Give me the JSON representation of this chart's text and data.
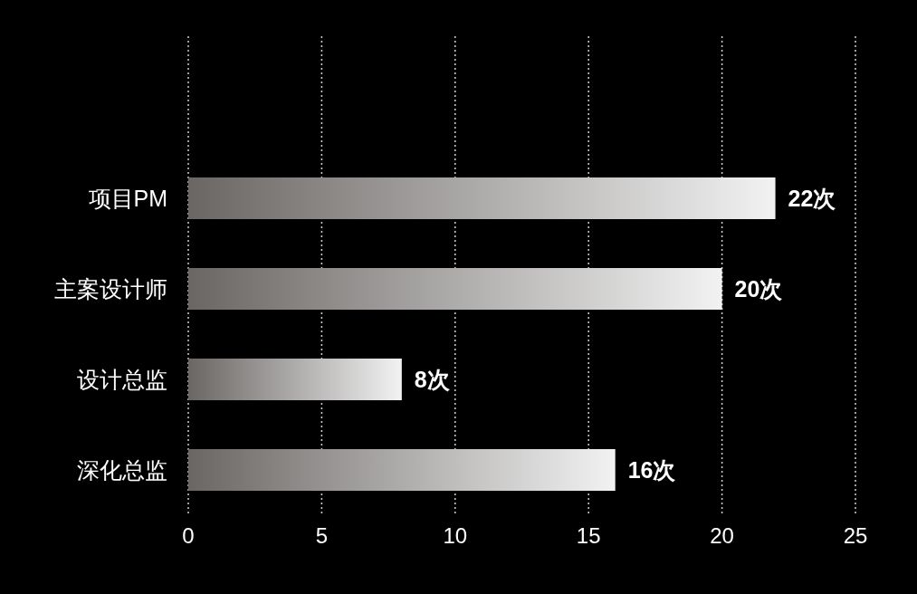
{
  "chart_data": {
    "type": "bar",
    "orientation": "horizontal",
    "categories": [
      "项目PM",
      "主案设计师",
      "设计总监",
      "深化总监"
    ],
    "values": [
      22,
      20,
      8,
      16
    ],
    "value_labels": [
      "22次",
      "20次",
      "8次",
      "16次"
    ],
    "color": "#f2f2f2",
    "xlim": [
      0,
      25
    ],
    "xticks": [
      0,
      5,
      10,
      15,
      20,
      25
    ],
    "grid": "x"
  }
}
